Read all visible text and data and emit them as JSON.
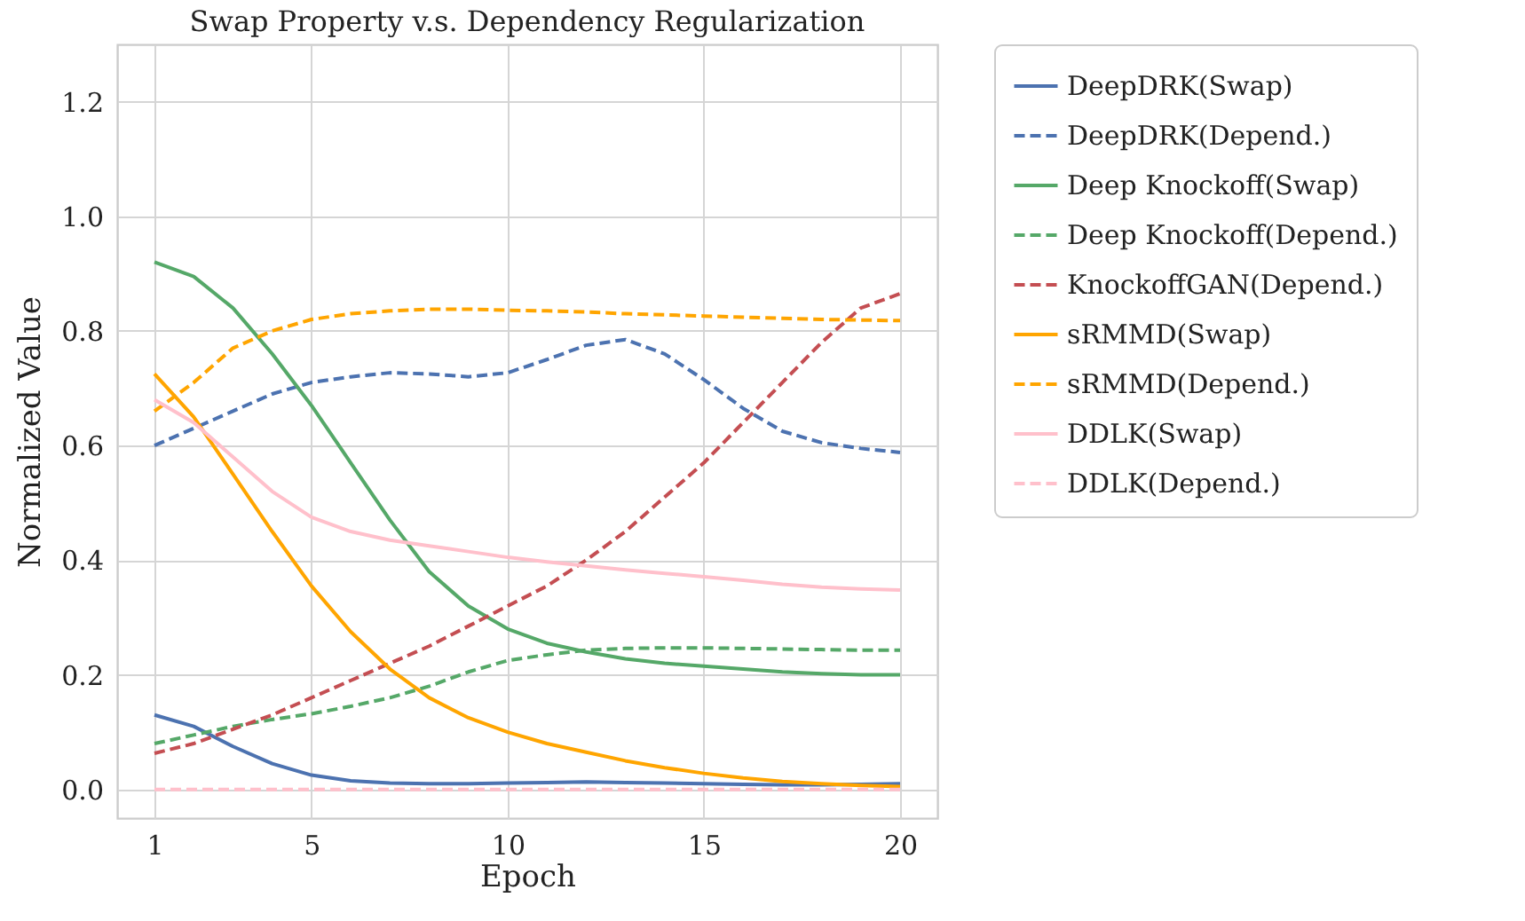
{
  "chart_data": {
    "type": "line",
    "title": "Swap Property v.s. Dependency Regularization",
    "xlabel": "Epoch",
    "ylabel": "Normalized Value",
    "x": [
      1,
      2,
      3,
      4,
      5,
      6,
      7,
      8,
      9,
      10,
      11,
      12,
      13,
      14,
      15,
      16,
      17,
      18,
      19,
      20
    ],
    "xlim": [
      0.05,
      20.95
    ],
    "xticks": [
      1,
      5,
      10,
      15,
      20
    ],
    "ylim": [
      -0.05,
      1.3
    ],
    "yticks": [
      {
        "value": 0,
        "label": "0.0"
      },
      0.2,
      0.4,
      0.6,
      0.8,
      {
        "value": 1,
        "label": "1.0"
      },
      1.2
    ],
    "grid": true,
    "legend": "top right",
    "marker": "none",
    "series": [
      {
        "name": "DeepDRK(Swap)",
        "color": "#4c72b0",
        "line_style": "solid",
        "values": [
          0.13,
          0.11,
          0.075,
          0.045,
          0.025,
          0.015,
          0.011,
          0.01,
          0.01,
          0.011,
          0.012,
          0.013,
          0.012,
          0.011,
          0.01,
          0.009,
          0.008,
          0.008,
          0.009,
          0.01
        ]
      },
      {
        "name": "DeepDRK(Depend.)",
        "color": "#4c72b0",
        "line_style": "dashed",
        "values": [
          0.6,
          0.63,
          0.66,
          0.69,
          0.71,
          0.72,
          0.727,
          0.725,
          0.72,
          0.727,
          0.75,
          0.775,
          0.785,
          0.76,
          0.715,
          0.665,
          0.625,
          0.605,
          0.595,
          0.588
        ]
      },
      {
        "name": "Deep Knockoff(Swap)",
        "color": "#55a868",
        "line_style": "solid",
        "values": [
          0.92,
          0.895,
          0.84,
          0.76,
          0.67,
          0.57,
          0.47,
          0.38,
          0.32,
          0.28,
          0.255,
          0.24,
          0.228,
          0.22,
          0.215,
          0.21,
          0.205,
          0.202,
          0.2,
          0.2
        ]
      },
      {
        "name": "Deep Knockoff(Depend.)",
        "color": "#55a868",
        "line_style": "dashed",
        "values": [
          0.08,
          0.095,
          0.11,
          0.122,
          0.132,
          0.145,
          0.16,
          0.18,
          0.205,
          0.225,
          0.235,
          0.243,
          0.246,
          0.247,
          0.247,
          0.246,
          0.245,
          0.244,
          0.243,
          0.243
        ]
      },
      {
        "name": "KnockoffGAN(Depend.)",
        "color": "#c44e52",
        "line_style": "dashed",
        "values": [
          0.063,
          0.08,
          0.105,
          0.13,
          0.16,
          0.19,
          0.22,
          0.25,
          0.285,
          0.32,
          0.355,
          0.4,
          0.45,
          0.51,
          0.57,
          0.64,
          0.71,
          0.78,
          0.84,
          0.865
        ]
      },
      {
        "name": "sRMMD(Swap)",
        "color": "#ffa500",
        "line_style": "solid",
        "values": [
          0.725,
          0.65,
          0.55,
          0.45,
          0.355,
          0.275,
          0.21,
          0.16,
          0.125,
          0.1,
          0.08,
          0.065,
          0.05,
          0.038,
          0.028,
          0.02,
          0.014,
          0.01,
          0.007,
          0.005
        ]
      },
      {
        "name": "sRMMD(Depend.)",
        "color": "#ffa500",
        "line_style": "dashed",
        "values": [
          0.66,
          0.71,
          0.77,
          0.8,
          0.82,
          0.83,
          0.835,
          0.838,
          0.838,
          0.836,
          0.835,
          0.833,
          0.83,
          0.828,
          0.826,
          0.824,
          0.822,
          0.82,
          0.819,
          0.818
        ]
      },
      {
        "name": "DDLK(Swap)",
        "color": "#ffc0cb",
        "line_style": "solid",
        "values": [
          0.68,
          0.64,
          0.58,
          0.52,
          0.475,
          0.45,
          0.435,
          0.425,
          0.415,
          0.405,
          0.397,
          0.39,
          0.383,
          0.377,
          0.371,
          0.365,
          0.358,
          0.353,
          0.35,
          0.348
        ]
      },
      {
        "name": "DDLK(Depend.)",
        "color": "#ffc0cb",
        "line_style": "dashed",
        "values": [
          0,
          0,
          0,
          0,
          0,
          0,
          0,
          0,
          0,
          0,
          0,
          0,
          0,
          0,
          0,
          0,
          0,
          0,
          0,
          0
        ]
      }
    ]
  }
}
